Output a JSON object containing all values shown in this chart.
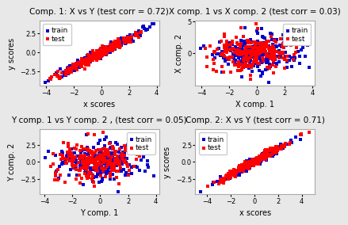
{
  "titles": [
    "Comp. 1: X vs Y (test corr = 0.72)",
    "X comp. 1 vs X comp. 2 (test corr = 0.03)",
    "Y comp. 1 vs Y comp. 2 , (test corr = 0.05)",
    "Comp. 2: X vs Y (test corr = 0.71)"
  ],
  "xlabels": [
    "x scores",
    "X comp. 1",
    "Y comp. 1",
    "x scores"
  ],
  "ylabels": [
    "y scores",
    "X comp. 2",
    "Y comp. 2",
    "y scores"
  ],
  "train_color": "#0000cc",
  "test_color": "#ff0000",
  "marker": "s",
  "marker_size": 10,
  "n_samples": 500,
  "n_features": 10,
  "n_targets": 5,
  "n_components": 2,
  "seed": 0,
  "fig_background": "#e8e8e8",
  "ax_background": "#ffffff",
  "title_fontsize": 7.5,
  "label_fontsize": 7,
  "legend_fontsize": 6.5,
  "tick_labelsize": 6
}
